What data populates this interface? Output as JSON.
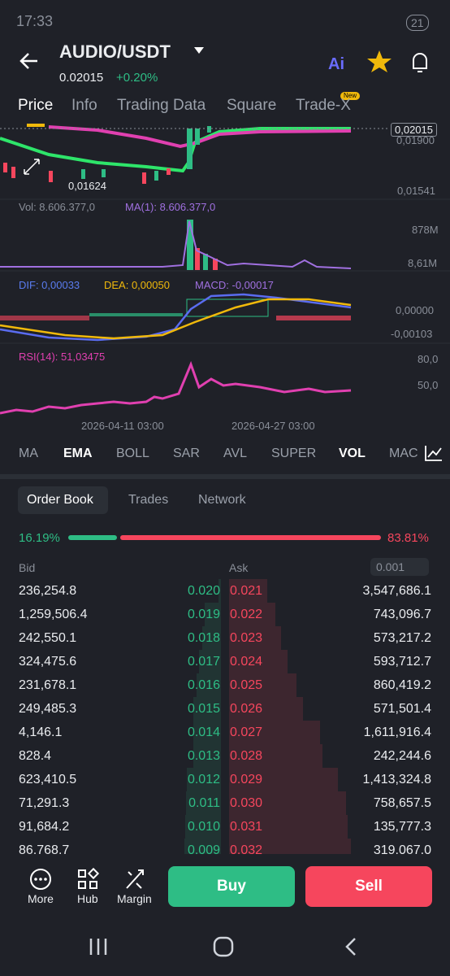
{
  "status_bar": {
    "time": "17:33",
    "battery": "21"
  },
  "header": {
    "pair": "AUDIO/USDT",
    "price": "0.02015",
    "change": "+0.20%"
  },
  "tabs": [
    "Price",
    "Info",
    "Trading Data",
    "Square",
    "Trade-X"
  ],
  "tab_badge": "New",
  "chart": {
    "price_labels": [
      "0,02015",
      "0,01900",
      "0,01541"
    ],
    "low_label": "0,01624",
    "volume": {
      "label": "Vol: 8.606.377,0",
      "ma": "MA(1): 8.606.377,0",
      "axis": [
        "878M",
        "8,61M"
      ]
    },
    "macd": {
      "dif": "DIF: 0,00033",
      "dea": "DEA: 0,00050",
      "macd": "MACD: -0,00017",
      "axis": [
        "0,00000",
        "-0,00103"
      ]
    },
    "rsi": {
      "label": "RSI(14): 51,03475",
      "axis": [
        "80,0",
        "50,0"
      ]
    },
    "dates": [
      "2026-04-11 03:00",
      "2026-04-27 03:00"
    ]
  },
  "indicators": [
    "MA",
    "EMA",
    "BOLL",
    "SAR",
    "AVL",
    "SUPER",
    "VOL",
    "MACD"
  ],
  "order_book": {
    "tabs": [
      "Order Book",
      "Trades",
      "Network"
    ],
    "bid_ratio": "16.19%",
    "ask_ratio": "83.81%",
    "bid_header": "Bid",
    "ask_header": "Ask",
    "precision": "0.001",
    "rows": [
      [
        "236,254.8",
        "0.020",
        "0.021",
        "3,547,686.1"
      ],
      [
        "1,259,506.4",
        "0.019",
        "0.022",
        "743,096.7"
      ],
      [
        "242,550.1",
        "0.018",
        "0.023",
        "573,217.2"
      ],
      [
        "324,475.6",
        "0.017",
        "0.024",
        "593,712.7"
      ],
      [
        "231,678.1",
        "0.016",
        "0.025",
        "860,419.2"
      ],
      [
        "249,485.3",
        "0.015",
        "0.026",
        "571,501.4"
      ],
      [
        "4,146.1",
        "0.014",
        "0.027",
        "1,611,916.4"
      ],
      [
        "828.4",
        "0.013",
        "0.028",
        "242,244.6"
      ],
      [
        "623,410.5",
        "0.012",
        "0.029",
        "1,413,324.8"
      ],
      [
        "71,291.3",
        "0.011",
        "0.030",
        "758,657.5"
      ],
      [
        "91,684.2",
        "0.010",
        "0.031",
        "135,777.3"
      ],
      [
        "86,768.7",
        "0.009",
        "0.032",
        "319,067.0"
      ]
    ]
  },
  "actions": {
    "more": "More",
    "hub": "Hub",
    "margin": "Margin",
    "buy": "Buy",
    "sell": "Sell"
  }
}
